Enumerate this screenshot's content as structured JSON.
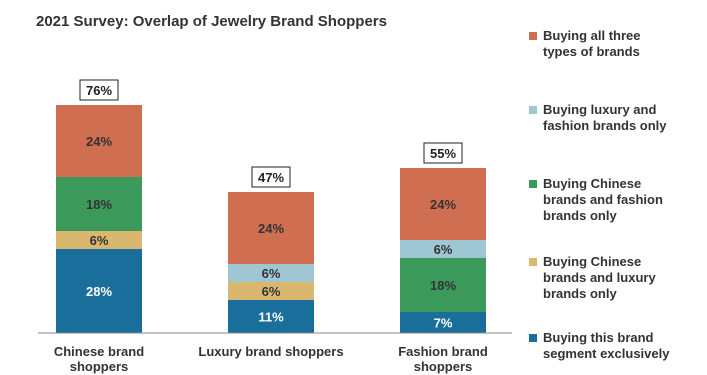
{
  "chart_data": {
    "type": "bar",
    "stacked": true,
    "title": "2021 Survey: Overlap of Jewelry Brand Shoppers",
    "categories": [
      [
        "Chinese brand",
        "shoppers"
      ],
      [
        "Luxury brand shoppers"
      ],
      [
        "Fashion brand",
        "shoppers"
      ]
    ],
    "totals": [
      "76%",
      "47%",
      "55%"
    ],
    "series": [
      {
        "name": [
          "Buying this brand",
          "segment exclusively"
        ],
        "color": "#1a6e9c",
        "values": [
          28,
          11,
          7
        ]
      },
      {
        "name": [
          "Buying Chinese",
          "brands and luxury",
          "brands only"
        ],
        "color": "#d9b76e",
        "values": [
          6,
          6,
          0
        ]
      },
      {
        "name": [
          "Buying Chinese",
          "brands and fashion",
          "brands only"
        ],
        "color": "#3b9a5a",
        "values": [
          18,
          0,
          18
        ]
      },
      {
        "name": [
          "Buying luxury and",
          "fashion brands only"
        ],
        "color": "#9fc6d3",
        "values": [
          0,
          6,
          6
        ]
      },
      {
        "name": [
          "Buying all three",
          "types of brands"
        ],
        "color": "#cf6e50",
        "values": [
          24,
          24,
          24
        ]
      }
    ],
    "legend_order": [
      4,
      3,
      2,
      1,
      0
    ],
    "legend_position": "right",
    "ylim": [
      0,
      76
    ],
    "grid": false
  }
}
